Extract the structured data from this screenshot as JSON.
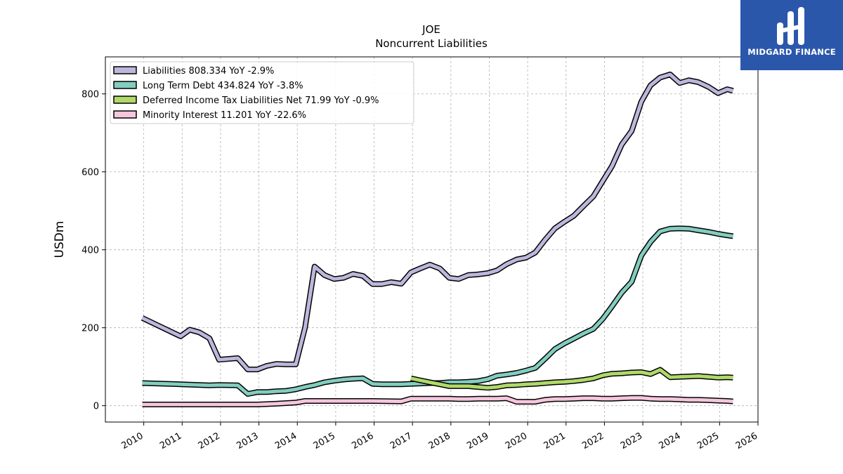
{
  "chart_data": {
    "type": "line",
    "title": "JOE",
    "subtitle": "Noncurrent  Liabilities",
    "ylabel": "USDm",
    "xlabel": "",
    "ylim": [
      -42,
      895
    ],
    "xlim": [
      2009.0,
      2026.0
    ],
    "grid": true,
    "legend_position": "top-left",
    "x_ticks": [
      2010,
      2011,
      2012,
      2013,
      2014,
      2015,
      2016,
      2017,
      2018,
      2019,
      2020,
      2021,
      2022,
      2023,
      2024,
      2025,
      2026
    ],
    "y_ticks": [
      0,
      200,
      400,
      600,
      800
    ],
    "series": [
      {
        "name": "Liabilities  808.334 YoY -2.9%",
        "color": "#bcb7dc",
        "x": [
          2009.96,
          2010.96,
          2011.2,
          2011.45,
          2011.71,
          2011.96,
          2012.45,
          2012.71,
          2012.96,
          2013.2,
          2013.45,
          2013.71,
          2013.96,
          2014.2,
          2014.45,
          2014.71,
          2014.96,
          2015.2,
          2015.45,
          2015.71,
          2015.96,
          2016.2,
          2016.45,
          2016.71,
          2016.96,
          2017.2,
          2017.45,
          2017.71,
          2017.96,
          2018.2,
          2018.45,
          2018.71,
          2018.96,
          2019.2,
          2019.45,
          2019.71,
          2019.96,
          2020.2,
          2020.45,
          2020.71,
          2020.96,
          2021.2,
          2021.45,
          2021.71,
          2021.96,
          2022.2,
          2022.45,
          2022.71,
          2022.96,
          2023.2,
          2023.45,
          2023.71,
          2023.96,
          2024.2,
          2024.45,
          2024.71,
          2024.96,
          2025.2,
          2025.35
        ],
        "values": [
          225,
          178,
          195,
          188,
          173,
          118,
          122,
          93,
          93,
          102,
          107,
          106,
          106,
          200,
          357,
          335,
          325,
          328,
          338,
          333,
          312,
          312,
          317,
          313,
          342,
          352,
          362,
          352,
          328,
          325,
          335,
          337,
          340,
          347,
          363,
          375,
          380,
          393,
          425,
          455,
          472,
          487,
          512,
          537,
          577,
          615,
          670,
          705,
          780,
          822,
          842,
          850,
          828,
          835,
          830,
          818,
          802,
          812,
          808
        ]
      },
      {
        "name": "Long Term Debt  434.824 YoY -3.8%",
        "color": "#82cdbf",
        "x": [
          2009.96,
          2010.96,
          2011.71,
          2011.96,
          2012.45,
          2012.71,
          2012.96,
          2013.2,
          2013.45,
          2013.71,
          2013.96,
          2014.2,
          2014.45,
          2014.71,
          2014.96,
          2015.2,
          2015.45,
          2015.71,
          2015.96,
          2016.2,
          2016.45,
          2016.71,
          2016.96,
          2017.2,
          2017.45,
          2017.71,
          2017.96,
          2018.2,
          2018.45,
          2018.71,
          2018.96,
          2019.2,
          2019.45,
          2019.71,
          2019.96,
          2020.2,
          2020.45,
          2020.71,
          2020.96,
          2021.2,
          2021.45,
          2021.71,
          2021.96,
          2022.2,
          2022.45,
          2022.71,
          2022.96,
          2023.2,
          2023.45,
          2023.71,
          2023.96,
          2024.2,
          2024.45,
          2024.71,
          2024.96,
          2025.2,
          2025.35
        ],
        "values": [
          58,
          55,
          52,
          53,
          52,
          30,
          35,
          35,
          37,
          38,
          42,
          48,
          53,
          60,
          64,
          67,
          69,
          70,
          56,
          55,
          55,
          55,
          56,
          57,
          58,
          58,
          60,
          60,
          61,
          63,
          68,
          77,
          80,
          84,
          90,
          97,
          120,
          145,
          160,
          172,
          185,
          197,
          223,
          255,
          290,
          318,
          385,
          420,
          447,
          454,
          455,
          454,
          450,
          446,
          441,
          437,
          435
        ]
      },
      {
        "name": "Deferred Income Tax Liabilities Net  71.99 YoY -0.9%",
        "color": "#b0d96a",
        "x": [
          2016.96,
          2017.2,
          2017.45,
          2017.71,
          2017.96,
          2018.2,
          2018.45,
          2018.71,
          2018.96,
          2019.2,
          2019.45,
          2019.71,
          2019.96,
          2020.2,
          2020.45,
          2020.71,
          2020.96,
          2021.2,
          2021.45,
          2021.71,
          2021.96,
          2022.2,
          2022.45,
          2022.71,
          2022.96,
          2023.2,
          2023.45,
          2023.71,
          2023.96,
          2024.2,
          2024.45,
          2024.71,
          2024.96,
          2025.2,
          2025.35
        ],
        "values": [
          70,
          65,
          60,
          55,
          50,
          50,
          50,
          48,
          46,
          48,
          52,
          53,
          55,
          56,
          58,
          60,
          61,
          63,
          66,
          70,
          78,
          82,
          83,
          85,
          86,
          81,
          92,
          73,
          74,
          75,
          76,
          74,
          72,
          73,
          72
        ]
      },
      {
        "name": "Minority Interest  11.201 YoY -22.6%",
        "color": "#f5c6dc",
        "x": [
          2009.96,
          2010.96,
          2011.96,
          2012.96,
          2013.45,
          2013.96,
          2014.2,
          2015.96,
          2016.71,
          2016.96,
          2017.45,
          2017.96,
          2018.2,
          2018.45,
          2018.71,
          2018.96,
          2019.2,
          2019.45,
          2019.71,
          2019.96,
          2020.2,
          2020.45,
          2020.71,
          2020.96,
          2021.2,
          2021.45,
          2021.71,
          2021.96,
          2022.2,
          2022.45,
          2022.71,
          2022.96,
          2023.2,
          2023.45,
          2023.71,
          2023.96,
          2024.2,
          2024.45,
          2024.71,
          2024.96,
          2025.2,
          2025.35
        ],
        "values": [
          3,
          3,
          3,
          3,
          5,
          8,
          12,
          12,
          11,
          18,
          18,
          18,
          17,
          17,
          18,
          18,
          18,
          19,
          10,
          10,
          10,
          15,
          17,
          17,
          18,
          19,
          19,
          18,
          18,
          19,
          20,
          20,
          18,
          17,
          17,
          16,
          15,
          15,
          14,
          13,
          12,
          11
        ]
      }
    ]
  },
  "logo": {
    "text": "MIDGARD FINANCE",
    "background": "#2b57ab"
  }
}
